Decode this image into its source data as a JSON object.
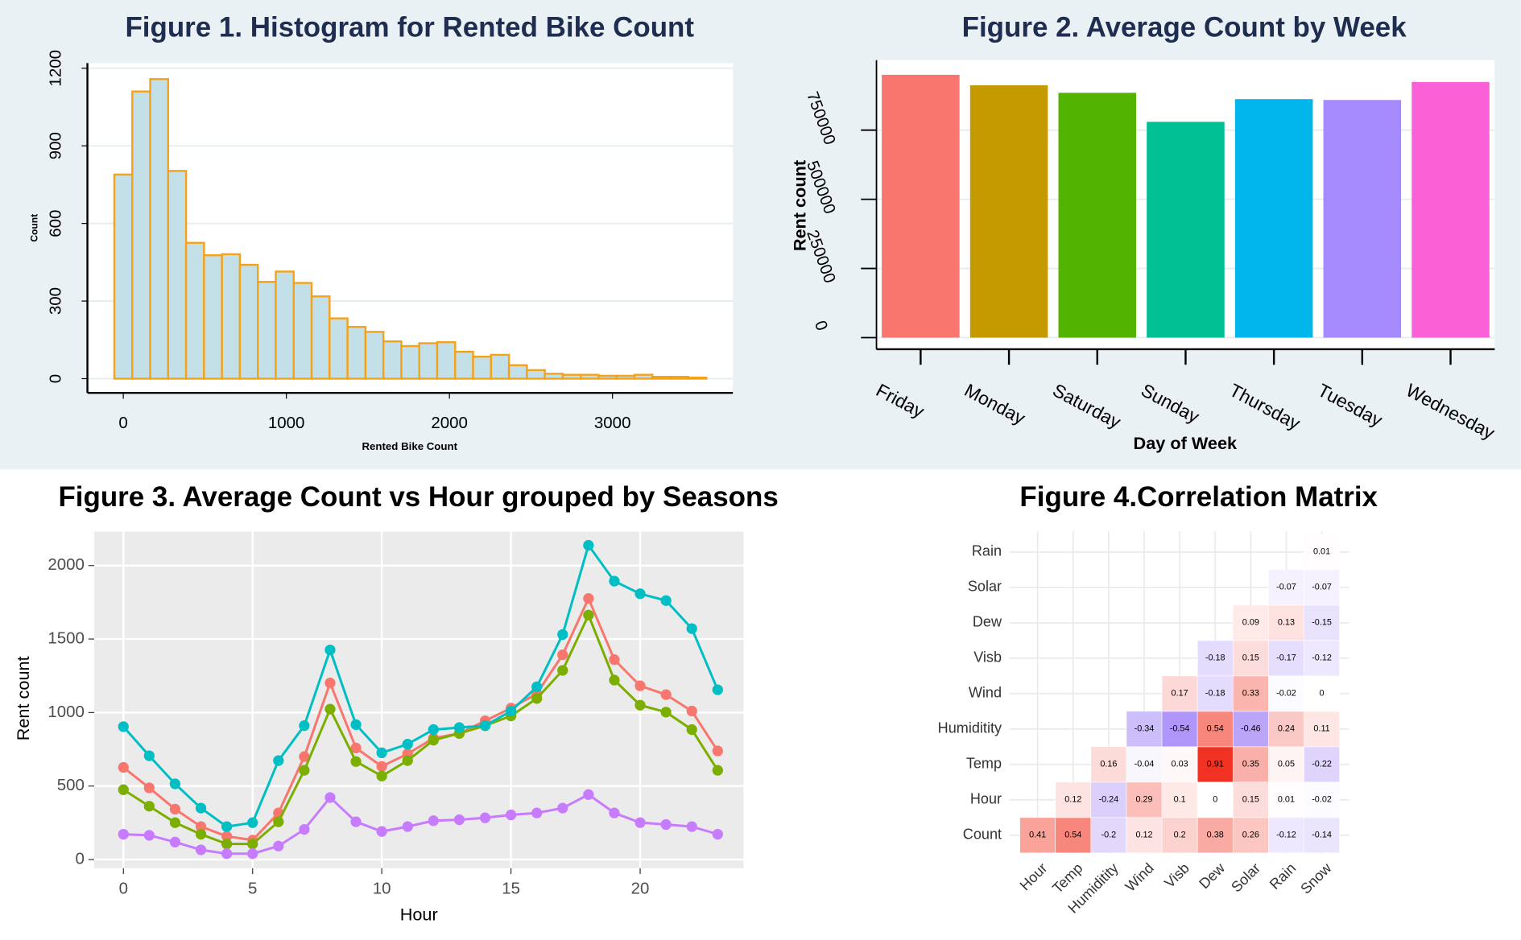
{
  "chart_data": [
    {
      "type": "histogram",
      "title": "Figure 1. Histogram for Rented Bike Count",
      "x_label": "Rented Bike Count",
      "y_label": "Count",
      "bins": [
        -55,
        55,
        165,
        275,
        385,
        495,
        605,
        715,
        825,
        935,
        1045,
        1155,
        1265,
        1375,
        1485,
        1595,
        1705,
        1815,
        1925,
        2035,
        2145,
        2255,
        2365,
        2475,
        2585,
        2695,
        2805,
        2915,
        3025,
        3135,
        3245,
        3355,
        3465,
        3575
      ],
      "values": [
        789,
        1110,
        1158,
        803,
        525,
        477,
        481,
        440,
        374,
        414,
        370,
        318,
        233,
        200,
        181,
        144,
        126,
        137,
        141,
        104,
        85,
        92,
        52,
        33,
        19,
        15,
        15,
        11,
        11,
        15,
        7,
        7,
        4
      ],
      "color": "#c3e0e8",
      "edge_color": "#f5a21b",
      "xlim": [
        -220,
        3738
      ],
      "ylim": [
        -55,
        1220
      ],
      "xticks": [
        0,
        1000,
        2000,
        3000
      ],
      "yticks": [
        0,
        300,
        600,
        900,
        1200
      ],
      "grid": true
    },
    {
      "type": "bar",
      "title": "Figure 2. Average Count by Week",
      "x_label": "Day of Week",
      "y_label": "Rent count",
      "categories": [
        "Friday",
        "Monday",
        "Saturday",
        "Sunday",
        "Thursday",
        "Tuesday",
        "Wednesday"
      ],
      "values": [
        950000,
        912000,
        885000,
        780000,
        862000,
        859000,
        924000
      ],
      "colors": [
        "#F8766D",
        "#C49A00",
        "#53B400",
        "#00C094",
        "#00B6EB",
        "#A58AFF",
        "#FB61D7"
      ],
      "ylim": [
        -42000,
        1003000
      ],
      "yticks": [
        0,
        250000,
        500000,
        750000
      ],
      "grid": true
    },
    {
      "type": "line",
      "title": "Figure 3. Average Count vs Hour grouped by Seasons",
      "x_label": "Hour",
      "y_label": "Rent count",
      "x": [
        0,
        1,
        2,
        3,
        4,
        5,
        6,
        7,
        8,
        9,
        10,
        11,
        12,
        13,
        14,
        15,
        16,
        17,
        18,
        19,
        20,
        21,
        22,
        23
      ],
      "series": [
        {
          "color": "#F8766D",
          "values": [
            627,
            488,
            343,
            224,
            158,
            132,
            317,
            700,
            1201,
            759,
            634,
            719,
            825,
            858,
            944,
            1030,
            1129,
            1393,
            1776,
            1360,
            1182,
            1122,
            1010,
            739
          ]
        },
        {
          "color": "#7CAE00",
          "values": [
            475,
            363,
            251,
            172,
            106,
            106,
            257,
            607,
            1023,
            667,
            568,
            673,
            812,
            858,
            911,
            977,
            1096,
            1287,
            1663,
            1221,
            1050,
            1003,
            884,
            607
          ]
        },
        {
          "color": "#00BFC4",
          "values": [
            904,
            706,
            515,
            350,
            224,
            251,
            673,
            911,
            1426,
            918,
            726,
            785,
            884,
            898,
            911,
            1010,
            1175,
            1531,
            2138,
            1894,
            1808,
            1762,
            1571,
            1155
          ]
        },
        {
          "color": "#C77CFF",
          "values": [
            172,
            165,
            119,
            66,
            40,
            40,
            92,
            205,
            422,
            257,
            191,
            224,
            264,
            271,
            284,
            304,
            317,
            350,
            442,
            317,
            251,
            238,
            224,
            172
          ]
        }
      ],
      "xlim": [
        -1.13,
        24.0
      ],
      "ylim": [
        -59,
        2231
      ],
      "xticks": [
        0,
        5,
        10,
        15,
        20
      ],
      "yticks": [
        0,
        500,
        1000,
        1500,
        2000
      ],
      "grid": true
    },
    {
      "type": "heatmap",
      "title": "Figure 4.Correlation Matrix",
      "x": [
        "Hour",
        "Temp",
        "Humiditity",
        "Wind",
        "Visb",
        "Dew",
        "Solar",
        "Rain",
        "Snow"
      ],
      "y": [
        "Count",
        "Hour",
        "Temp",
        "Humiditity",
        "Wind",
        "Visb",
        "Dew",
        "Solar",
        "Rain"
      ],
      "values": [
        [
          0.41,
          0.54,
          -0.2,
          0.12,
          0.2,
          0.38,
          0.26,
          -0.12,
          -0.14
        ],
        [
          null,
          0.12,
          -0.24,
          0.29,
          0.1,
          0,
          0.15,
          0.01,
          -0.02
        ],
        [
          null,
          null,
          0.16,
          -0.04,
          0.03,
          0.91,
          0.35,
          0.05,
          -0.22
        ],
        [
          null,
          null,
          null,
          -0.34,
          -0.54,
          0.54,
          -0.46,
          0.24,
          0.11
        ],
        [
          null,
          null,
          null,
          null,
          0.17,
          -0.18,
          0.33,
          -0.02,
          0
        ],
        [
          null,
          null,
          null,
          null,
          null,
          -0.18,
          0.15,
          -0.17,
          -0.12
        ],
        [
          null,
          null,
          null,
          null,
          null,
          null,
          0.09,
          0.13,
          -0.15
        ],
        [
          null,
          null,
          null,
          null,
          null,
          null,
          null,
          -0.07,
          -0.07
        ],
        [
          null,
          null,
          null,
          null,
          null,
          null,
          null,
          null,
          0.01
        ]
      ],
      "low_color": "#6a3cf2",
      "mid_color": "#ffffff",
      "high_color": "#f01e0c",
      "clim": [
        -1,
        1
      ]
    }
  ]
}
